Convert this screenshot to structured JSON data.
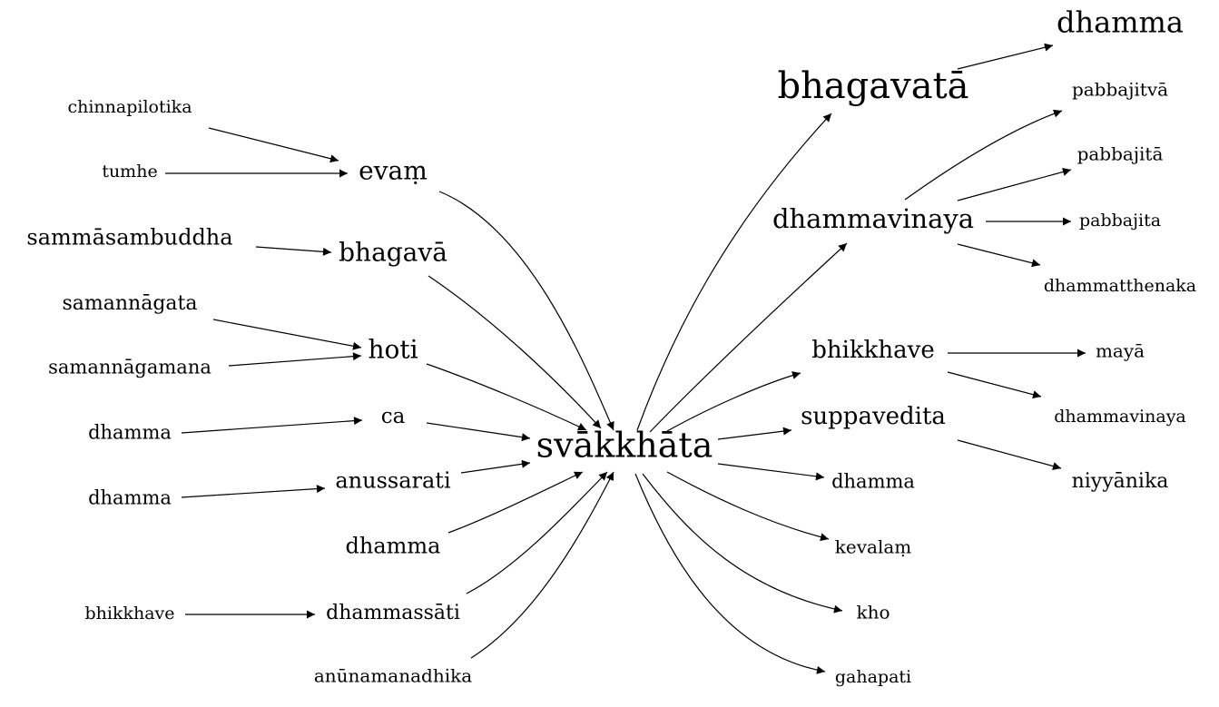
{
  "center": "svākkhāta",
  "nodes": {
    "chinnapilotika": "chinnapilotika",
    "tumhe": "tumhe",
    "evam": "evaṃ",
    "sammasambuddha": "sammāsambuddha",
    "bhagava": "bhagavā",
    "samannagata": "samannāgata",
    "samannagamana": "samannāgamana",
    "hoti": "hoti",
    "dhamma_l1": "dhamma",
    "ca": "ca",
    "dhamma_l2": "dhamma",
    "anussarati": "anussarati",
    "dhamma_l3": "dhamma",
    "bhikkhave_l": "bhikkhave",
    "dhammassati": "dhammassāti",
    "anunamanadhika": "anūnamanadhika",
    "svakkhata": "svākkhāta",
    "bhagavata": "bhagavatā",
    "dhamma_r_top": "dhamma",
    "dhammavinaya": "dhammavinaya",
    "pabbajitva": "pabbajitvā",
    "pabbajita_long": "pabbajitā",
    "pabbajita": "pabbajita",
    "dhammatthenaka": "dhammatthenaka",
    "bhikkhave_r": "bhikkhave",
    "maya": "mayā",
    "dhammavinaya_small": "dhammavinaya",
    "suppavedita": "suppavedita",
    "niyyanika": "niyyānika",
    "dhamma_r": "dhamma",
    "kevalam": "kevalaṃ",
    "kho": "kho",
    "gahapati": "gahapati"
  },
  "edges": [
    [
      "chinnapilotika",
      "evam"
    ],
    [
      "tumhe",
      "evam"
    ],
    [
      "evam",
      "svakkhata"
    ],
    [
      "sammasambuddha",
      "bhagava"
    ],
    [
      "bhagava",
      "svakkhata"
    ],
    [
      "samannagata",
      "hoti"
    ],
    [
      "samannagamana",
      "hoti"
    ],
    [
      "hoti",
      "svakkhata"
    ],
    [
      "dhamma_l1",
      "ca"
    ],
    [
      "ca",
      "svakkhata"
    ],
    [
      "dhamma_l2",
      "anussarati"
    ],
    [
      "anussarati",
      "svakkhata"
    ],
    [
      "dhamma_l3",
      "svakkhata"
    ],
    [
      "bhikkhave_l",
      "dhammassati"
    ],
    [
      "dhammassati",
      "svakkhata"
    ],
    [
      "anunamanadhika",
      "svakkhata"
    ],
    [
      "svakkhata",
      "bhagavata"
    ],
    [
      "bhagavata",
      "dhamma_r_top"
    ],
    [
      "svakkhata",
      "dhammavinaya"
    ],
    [
      "dhammavinaya",
      "pabbajitva"
    ],
    [
      "dhammavinaya",
      "pabbajita_long"
    ],
    [
      "dhammavinaya",
      "pabbajita"
    ],
    [
      "dhammavinaya",
      "dhammatthenaka"
    ],
    [
      "svakkhata",
      "bhikkhave_r"
    ],
    [
      "bhikkhave_r",
      "maya"
    ],
    [
      "bhikkhave_r",
      "dhammavinaya_small"
    ],
    [
      "svakkhata",
      "suppavedita"
    ],
    [
      "suppavedita",
      "niyyanika"
    ],
    [
      "svakkhata",
      "dhamma_r"
    ],
    [
      "svakkhata",
      "kevalam"
    ],
    [
      "svakkhata",
      "kho"
    ],
    [
      "svakkhata",
      "gahapati"
    ]
  ]
}
